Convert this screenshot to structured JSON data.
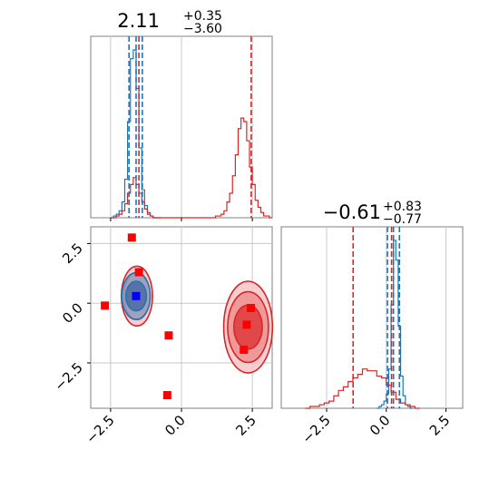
{
  "chart_data": [
    {
      "panel": "marginal-x",
      "type": "histogram",
      "title": {
        "main": "2.11",
        "plus": "+0.35",
        "minus": "−3.60"
      },
      "xlim": [
        -3.2,
        3.2
      ],
      "grid": true,
      "x_tick_values": [
        -2.5,
        0.0,
        2.5
      ],
      "series": [
        {
          "color": "#1f77b4",
          "bins": [
            -2.5,
            -2.4,
            -2.3,
            -2.2,
            -2.1,
            -2.0,
            -1.9,
            -1.8,
            -1.7,
            -1.6,
            -1.5,
            -1.4,
            -1.3,
            -1.2,
            -1.1,
            -1.0,
            -0.9,
            -0.8
          ],
          "values": [
            0,
            1,
            2,
            4,
            9,
            22,
            55,
            91,
            96,
            74,
            40,
            16,
            7,
            3,
            1,
            0,
            0,
            0
          ],
          "vlines": [
            -1.85,
            -1.6,
            -1.38
          ]
        },
        {
          "color": "#d62728",
          "bins": [
            -2.5,
            -2.4,
            -2.3,
            -2.2,
            -2.1,
            -2.0,
            -1.9,
            -1.8,
            -1.7,
            -1.6,
            -1.5,
            -1.4,
            -1.3,
            -1.2,
            -1.1,
            -1.0,
            1.1,
            1.2,
            1.3,
            1.4,
            1.5,
            1.6,
            1.7,
            1.8,
            1.9,
            2.0,
            2.1,
            2.2,
            2.3,
            2.4,
            2.5,
            2.6,
            2.7,
            2.8,
            2.9,
            3.0,
            3.1
          ],
          "values": [
            0,
            0,
            1,
            2,
            4,
            8,
            14,
            19,
            23,
            19,
            14,
            9,
            5,
            2,
            1,
            0,
            0,
            1,
            1,
            2,
            4,
            9,
            14,
            24,
            36,
            51,
            57,
            55,
            44,
            29,
            19,
            10,
            6,
            3,
            1,
            1,
            0
          ],
          "vlines": [
            -1.5,
            2.46
          ]
        }
      ]
    },
    {
      "panel": "joint",
      "type": "scatter",
      "xlim": [
        -3.2,
        3.2
      ],
      "ylim": [
        -4.4,
        3.2
      ],
      "grid": true,
      "x_tick_labels": [
        "−2.5",
        "0.0",
        "2.5"
      ],
      "y_tick_labels": [
        "2.5",
        "0.0",
        "−2.5"
      ],
      "x_tick_values": [
        -2.5,
        0.0,
        2.5
      ],
      "y_tick_values": [
        2.5,
        0.0,
        -2.5
      ],
      "red_points": [
        [
          -1.75,
          2.75
        ],
        [
          -1.5,
          1.3
        ],
        [
          -2.7,
          -0.1
        ],
        [
          -0.45,
          -1.35
        ],
        [
          -0.5,
          -3.85
        ],
        [
          2.45,
          -0.2
        ],
        [
          2.3,
          -0.9
        ],
        [
          2.2,
          -1.95
        ]
      ],
      "blue_points": [
        [
          -1.6,
          0.3
        ]
      ],
      "contours": {
        "red": [
          {
            "cx": -1.57,
            "cy": 0.3,
            "rx": 0.55,
            "ry": 1.25
          },
          {
            "cx": -1.57,
            "cy": 0.3,
            "rx": 0.46,
            "ry": 0.98
          },
          {
            "cx": -1.57,
            "cy": 0.3,
            "rx": 0.34,
            "ry": 0.62
          },
          {
            "cx": 2.35,
            "cy": -1.0,
            "rx": 0.86,
            "ry": 1.92
          },
          {
            "cx": 2.35,
            "cy": -1.0,
            "rx": 0.72,
            "ry": 1.48
          },
          {
            "cx": 2.35,
            "cy": -1.0,
            "rx": 0.5,
            "ry": 0.92
          }
        ],
        "blue": [
          {
            "cx": -1.6,
            "cy": 0.3,
            "rx": 0.5,
            "ry": 0.98
          },
          {
            "cx": -1.6,
            "cy": 0.3,
            "rx": 0.36,
            "ry": 0.62
          }
        ]
      }
    },
    {
      "panel": "marginal-y",
      "type": "histogram",
      "title": {
        "main": "−0.61",
        "plus": "+0.83",
        "minus": "−0.77"
      },
      "xlim": [
        -4.4,
        3.2
      ],
      "grid": true,
      "x_tick_labels": [
        "−2.5",
        "0.0",
        "2.5"
      ],
      "x_tick_values": [
        -2.5,
        0.0,
        2.5
      ],
      "series": [
        {
          "color": "#1f77b4",
          "bins": [
            -0.4,
            -0.3,
            -0.2,
            -0.1,
            0.0,
            0.1,
            0.2,
            0.3,
            0.4,
            0.5,
            0.6,
            0.7,
            0.8,
            0.9,
            1.0
          ],
          "values": [
            0,
            1,
            2,
            4,
            8,
            22,
            58,
            94,
            83,
            46,
            18,
            7,
            2,
            1,
            0
          ],
          "vlines": [
            0.05,
            0.3,
            0.55
          ]
        },
        {
          "color": "#d62728",
          "bins": [
            -3.4,
            -3.2,
            -3.0,
            -2.8,
            -2.6,
            -2.4,
            -2.2,
            -2.0,
            -1.8,
            -1.6,
            -1.4,
            -1.2,
            -1.0,
            -0.8,
            -0.6,
            -0.4,
            -0.2,
            0.0,
            0.2,
            0.4,
            0.6,
            0.8,
            1.0,
            1.2
          ],
          "values": [
            0,
            1,
            1,
            2,
            3,
            4,
            7,
            10,
            12,
            15,
            17,
            19,
            22,
            21,
            21,
            18,
            17,
            13,
            9,
            5,
            3,
            2,
            1,
            0
          ],
          "vlines": [
            -1.39,
            0.22
          ]
        }
      ]
    }
  ]
}
